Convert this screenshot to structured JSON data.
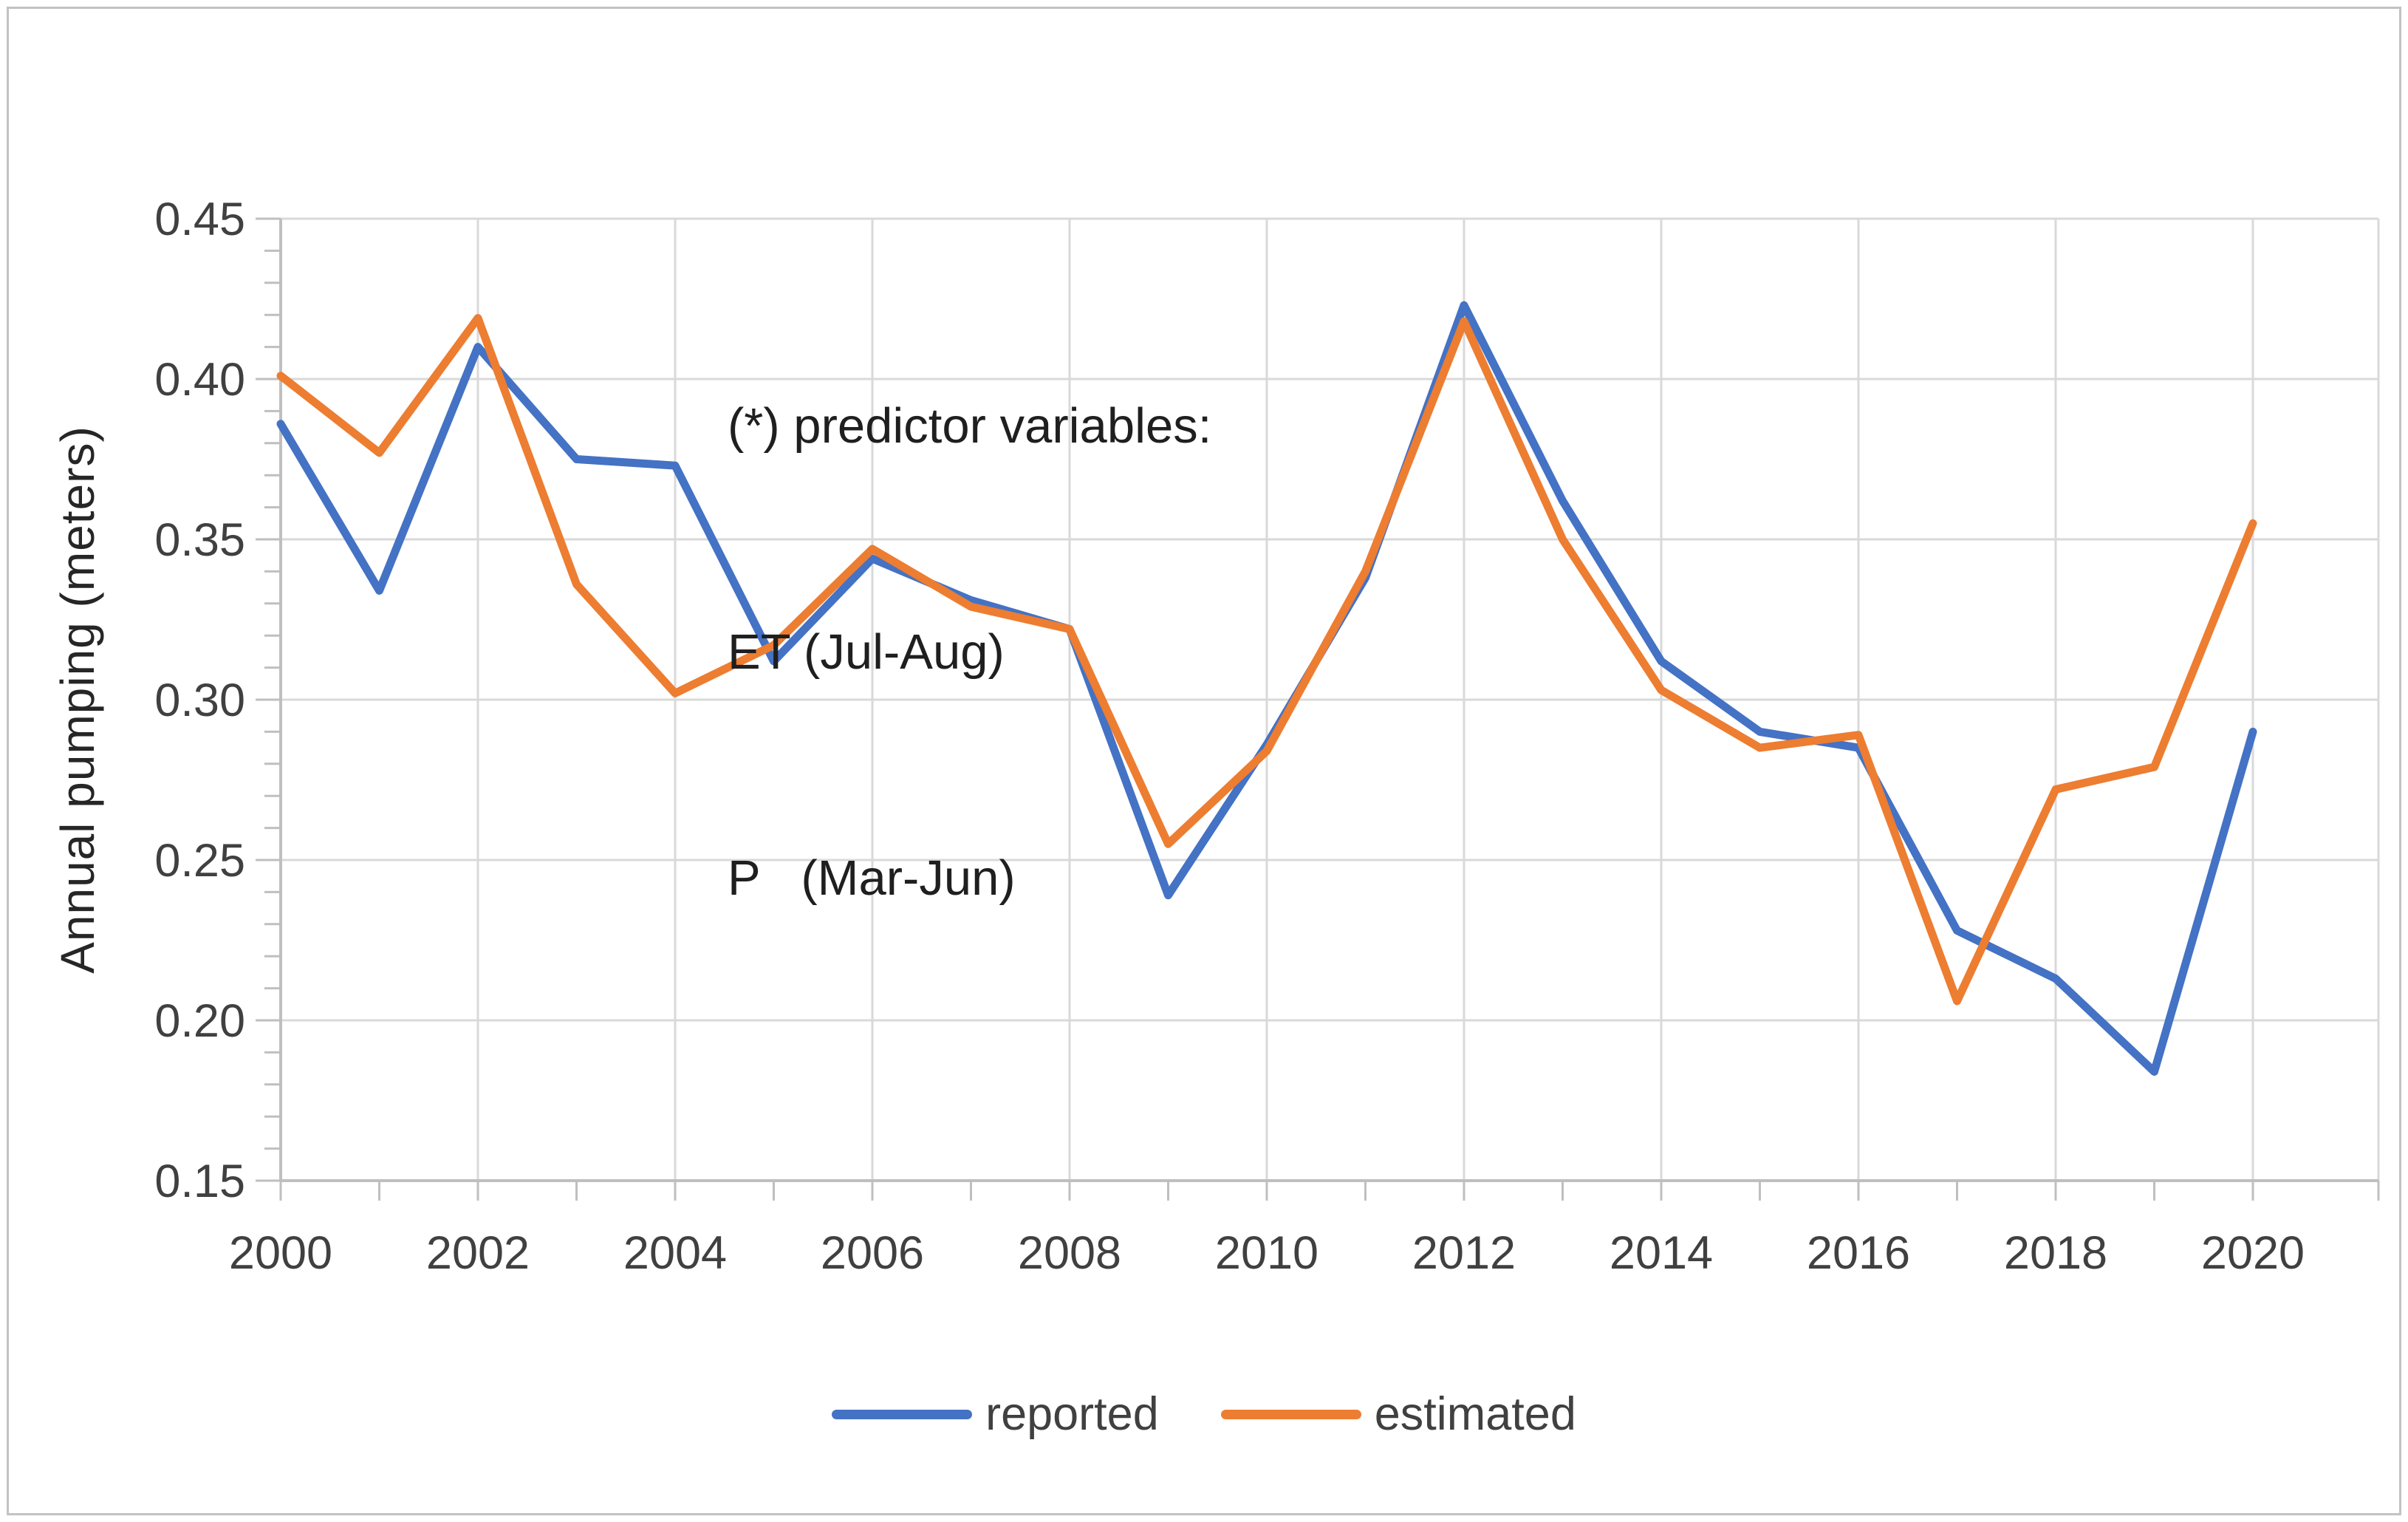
{
  "figure": {
    "outer_border_color": "#c2c2c2",
    "background_color": "#ffffff"
  },
  "chart_data": {
    "type": "line",
    "title": "",
    "xlabel": "",
    "ylabel": "Annual pumping (meters)",
    "annotation_lines": [
      "(*) predictor variables:",
      "ET (Jul-Aug)",
      "P   (Mar-Jun)"
    ],
    "x": [
      2000,
      2001,
      2002,
      2003,
      2004,
      2005,
      2006,
      2007,
      2008,
      2009,
      2010,
      2011,
      2012,
      2013,
      2014,
      2015,
      2016,
      2017,
      2018,
      2019,
      2020
    ],
    "series": [
      {
        "name": "reported",
        "color": "#4472C4",
        "values": [
          0.386,
          0.334,
          0.41,
          0.375,
          0.373,
          0.312,
          0.344,
          0.331,
          0.322,
          0.239,
          0.286,
          0.338,
          0.423,
          0.362,
          0.312,
          0.29,
          0.285,
          0.228,
          0.213,
          0.184,
          0.29
        ]
      },
      {
        "name": "estimated",
        "color": "#ED7D31",
        "values": [
          0.401,
          0.377,
          0.419,
          0.336,
          0.302,
          0.317,
          0.347,
          0.329,
          0.322,
          0.255,
          0.284,
          0.34,
          0.418,
          0.35,
          0.303,
          0.285,
          0.289,
          0.206,
          0.272,
          0.279,
          0.355
        ]
      }
    ],
    "ylim": [
      0.15,
      0.45
    ],
    "yticks": [
      0.15,
      0.2,
      0.25,
      0.3,
      0.35,
      0.4,
      0.45
    ],
    "ytick_format_decimals": 2,
    "yminor_step": 0.01,
    "xticks": [
      2000,
      2002,
      2004,
      2006,
      2008,
      2010,
      2012,
      2014,
      2016,
      2018,
      2020
    ],
    "grid": true,
    "legend_position": "bottom",
    "gridline_color": "#D9D9D9",
    "axis_color": "#BFBFBF",
    "text_color": "#404040"
  }
}
